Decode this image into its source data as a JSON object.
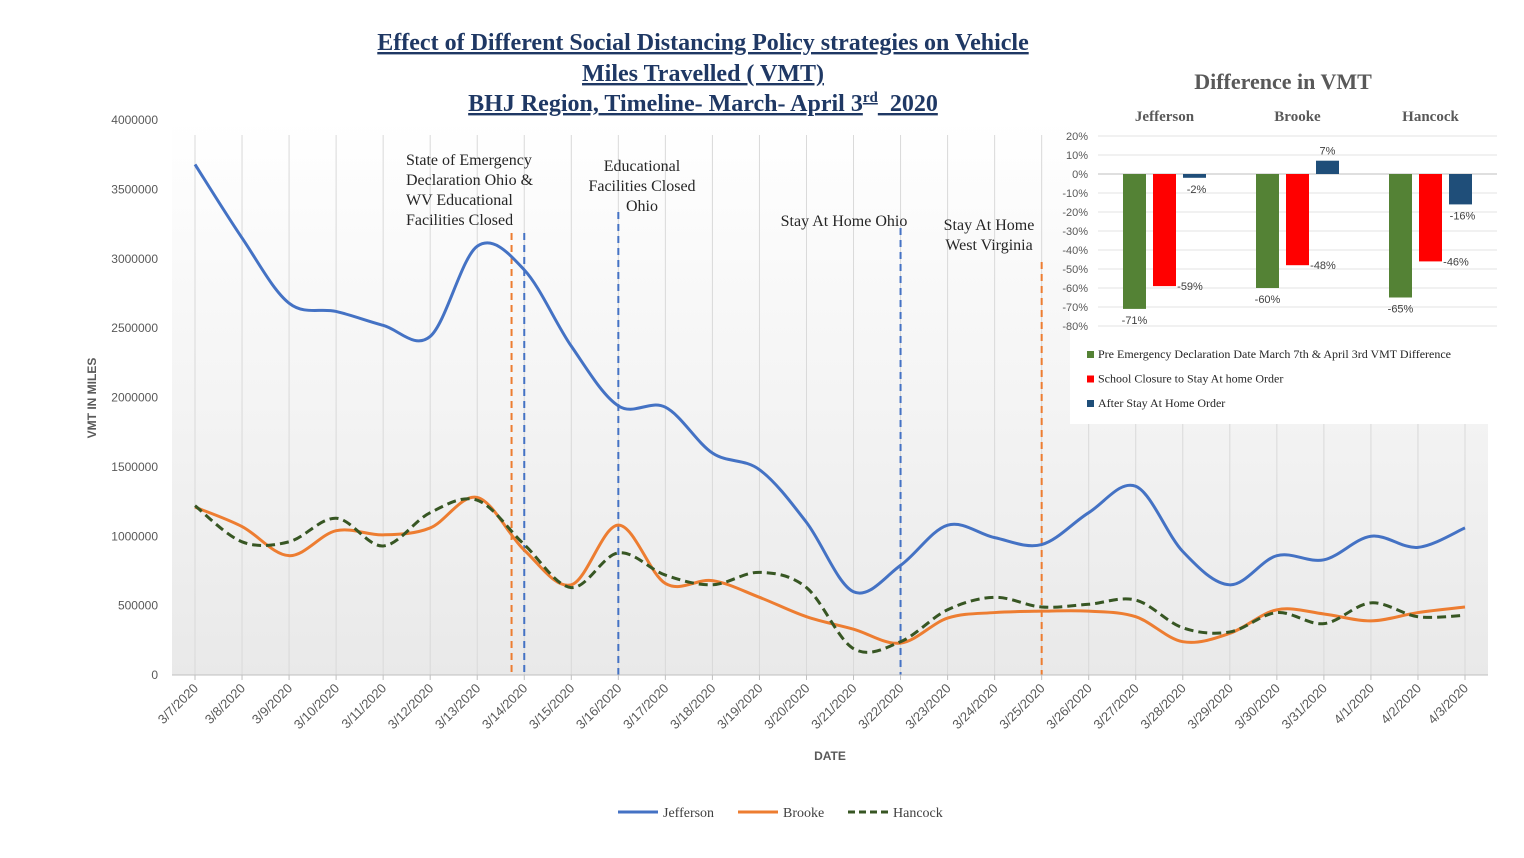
{
  "chart_data": [
    {
      "type": "line",
      "title_lines": [
        "Effect of Different Social Distancing Policy strategies on Vehicle",
        "Miles Travelled ( VMT)"
      ],
      "title_line3": {
        "text": "BHJ Region, Timeline- March- April 3",
        "sup": "rd",
        "tail": "  2020"
      },
      "xlabel": "DATE",
      "ylabel": "VMT IN MILES",
      "ylim": [
        0,
        4000000
      ],
      "yticks": [
        "0",
        "500000",
        "1000000",
        "1500000",
        "2000000",
        "2500000",
        "3000000",
        "3500000",
        "4000000"
      ],
      "ytick_values": [
        0,
        500000,
        1000000,
        1500000,
        2000000,
        2500000,
        3000000,
        3500000,
        4000000
      ],
      "categories": [
        "3/7/2020",
        "3/8/2020",
        "3/9/2020",
        "3/10/2020",
        "3/11/2020",
        "3/12/2020",
        "3/13/2020",
        "3/14/2020",
        "3/15/2020",
        "3/16/2020",
        "3/17/2020",
        "3/18/2020",
        "3/19/2020",
        "3/20/2020",
        "3/21/2020",
        "3/22/2020",
        "3/23/2020",
        "3/24/2020",
        "3/25/2020",
        "3/26/2020",
        "3/27/2020",
        "3/28/2020",
        "3/29/2020",
        "3/30/2020",
        "3/31/2020",
        "4/1/2020",
        "4/2/2020",
        "4/3/2020"
      ],
      "series": [
        {
          "name": "Jefferson",
          "color": "#4472c4",
          "dash": "solid",
          "values": [
            3680000,
            3150000,
            2680000,
            2620000,
            2520000,
            2440000,
            3090000,
            2920000,
            2370000,
            1940000,
            1930000,
            1600000,
            1480000,
            1100000,
            600000,
            790000,
            1080000,
            990000,
            940000,
            1170000,
            1360000,
            890000,
            650000,
            860000,
            830000,
            1000000,
            920000,
            1060000
          ]
        },
        {
          "name": "Brooke",
          "color": "#ed7d31",
          "dash": "solid",
          "values": [
            1210000,
            1070000,
            860000,
            1040000,
            1010000,
            1060000,
            1280000,
            900000,
            650000,
            1080000,
            660000,
            680000,
            560000,
            420000,
            330000,
            230000,
            410000,
            450000,
            460000,
            460000,
            420000,
            240000,
            300000,
            470000,
            440000,
            390000,
            450000,
            490000
          ]
        },
        {
          "name": "Hancock",
          "color": "#375623",
          "dash": "dashed",
          "values": [
            1220000,
            960000,
            960000,
            1130000,
            930000,
            1170000,
            1260000,
            940000,
            630000,
            880000,
            720000,
            650000,
            740000,
            630000,
            190000,
            240000,
            470000,
            560000,
            490000,
            510000,
            540000,
            340000,
            310000,
            450000,
            370000,
            520000,
            420000,
            430000
          ]
        }
      ],
      "legend_position": "bottom-center",
      "grid": {
        "vertical": true,
        "horizontal": false
      },
      "events": [
        {
          "date_index": 7,
          "offset": -0.27,
          "color": "#ed7d31",
          "lines": [
            "State of Emergency",
            "Declaration Ohio &",
            "WV Educational",
            "Facilities Closed"
          ]
        },
        {
          "date_index": 7,
          "offset": 0,
          "color": "#4472c4",
          "lines": []
        },
        {
          "date_index": 9,
          "offset": 0,
          "color": "#4472c4",
          "lines": [
            "Educational",
            "Facilities Closed",
            "Ohio"
          ]
        },
        {
          "date_index": 15,
          "offset": 0,
          "color": "#4472c4",
          "lines": [
            "Stay At Home Ohio"
          ]
        },
        {
          "date_index": 18,
          "offset": 0,
          "color": "#ed7d31",
          "lines": [
            "Stay At Home",
            "West Virginia"
          ]
        }
      ]
    },
    {
      "type": "bar",
      "title": "Difference in VMT",
      "categories": [
        "Jefferson",
        "Brooke",
        "Hancock"
      ],
      "ylim": [
        -0.8,
        0.2
      ],
      "yticks": [
        "20%",
        "10%",
        "0%",
        "-10%",
        "-20%",
        "-30%",
        "-40%",
        "-50%",
        "-60%",
        "-70%",
        "-80%"
      ],
      "ytick_values": [
        0.2,
        0.1,
        0,
        -0.1,
        -0.2,
        -0.3,
        -0.4,
        -0.5,
        -0.6,
        -0.7,
        -0.8
      ],
      "series": [
        {
          "name": "Pre Emergency Declaration Date March 7th & April 3rd VMT Difference",
          "color": "#548235",
          "values": [
            -0.71,
            -0.6,
            -0.65
          ],
          "labels": [
            "-71%",
            "-60%",
            "-65%"
          ]
        },
        {
          "name": "School Closure to Stay At home Order",
          "color": "#ff0000",
          "values": [
            -0.59,
            -0.48,
            -0.46
          ],
          "labels": [
            "-59%",
            "-48%",
            "-46%"
          ]
        },
        {
          "name": "After Stay At Home Order",
          "color": "#1f4e79",
          "values": [
            -0.02,
            0.07,
            -0.16
          ],
          "labels": [
            "-2%",
            "7%",
            "-16%"
          ]
        }
      ],
      "legend_position": "bottom",
      "grid": {
        "horizontal": true
      }
    }
  ]
}
